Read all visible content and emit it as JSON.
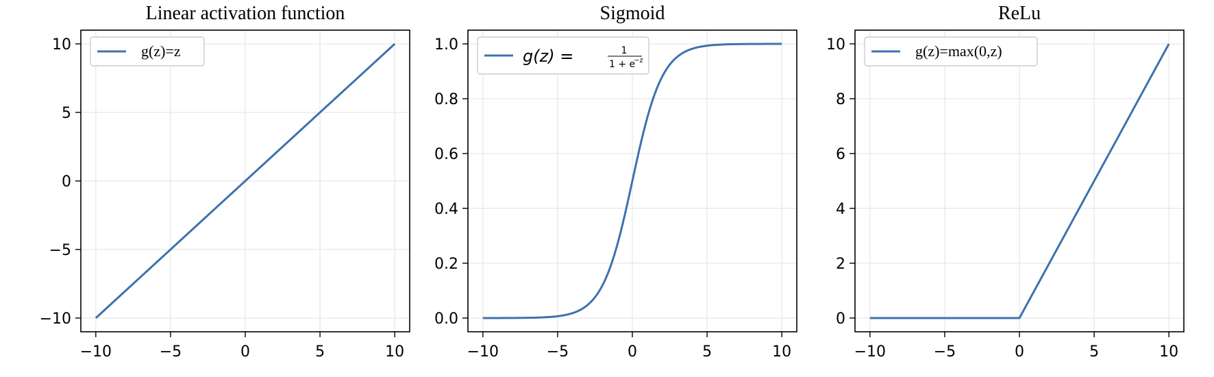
{
  "figure": {
    "line_color": "#3d72ad",
    "grid_color": "#e6e6e6"
  },
  "chart_data": [
    {
      "type": "line",
      "title": "Linear activation function",
      "function": "linear",
      "xlim": [
        -11,
        11
      ],
      "ylim": [
        -11,
        11
      ],
      "xticks": [
        -10,
        -5,
        0,
        5,
        10
      ],
      "xtick_labels": [
        "−10",
        "−5",
        "0",
        "5",
        "10"
      ],
      "yticks": [
        -10,
        -5,
        0,
        5,
        10
      ],
      "ytick_labels": [
        "−10",
        "−5",
        "0",
        "5",
        "10"
      ],
      "grid": true,
      "legend": "upper-left",
      "series": [
        {
          "name": "g(z)=z",
          "x": [
            -10,
            10
          ],
          "y": [
            -10,
            10
          ]
        }
      ]
    },
    {
      "type": "line",
      "title": "Sigmoid",
      "function": "sigmoid",
      "xlim": [
        -11,
        11
      ],
      "ylim": [
        -0.05,
        1.05
      ],
      "xticks": [
        -10,
        -5,
        0,
        5,
        10
      ],
      "xtick_labels": [
        "−10",
        "−5",
        "0",
        "5",
        "10"
      ],
      "yticks": [
        0,
        0.2,
        0.4,
        0.6,
        0.8,
        1.0
      ],
      "ytick_labels": [
        "0.0",
        "0.2",
        "0.4",
        "0.6",
        "0.8",
        "1.0"
      ],
      "grid": true,
      "legend": "upper-left",
      "series": [
        {
          "name": "g(z) = 1/(1 + e^−z)",
          "legend_lhs": "g(z) =",
          "legend_num": "1",
          "legend_den": "1 + e",
          "legend_sup": "−z",
          "x": [
            -10,
            -8,
            -6,
            -5,
            -4,
            -3,
            -2,
            -1,
            0,
            1,
            2,
            3,
            4,
            5,
            6,
            8,
            10
          ],
          "y": [
            5e-05,
            0.0003,
            0.0025,
            0.0067,
            0.018,
            0.047,
            0.119,
            0.269,
            0.5,
            0.731,
            0.881,
            0.953,
            0.982,
            0.9933,
            0.9975,
            0.9997,
            0.99995
          ]
        }
      ]
    },
    {
      "type": "line",
      "title": "ReLu",
      "function": "relu",
      "xlim": [
        -11,
        11
      ],
      "ylim": [
        -0.5,
        10.5
      ],
      "xticks": [
        -10,
        -5,
        0,
        5,
        10
      ],
      "xtick_labels": [
        "−10",
        "−5",
        "0",
        "5",
        "10"
      ],
      "yticks": [
        0,
        2,
        4,
        6,
        8,
        10
      ],
      "ytick_labels": [
        "0",
        "2",
        "4",
        "6",
        "8",
        "10"
      ],
      "grid": true,
      "legend": "upper-left",
      "series": [
        {
          "name": "g(z)=max(0,z)",
          "x": [
            -10,
            0,
            10
          ],
          "y": [
            0,
            0,
            10
          ]
        }
      ]
    }
  ]
}
